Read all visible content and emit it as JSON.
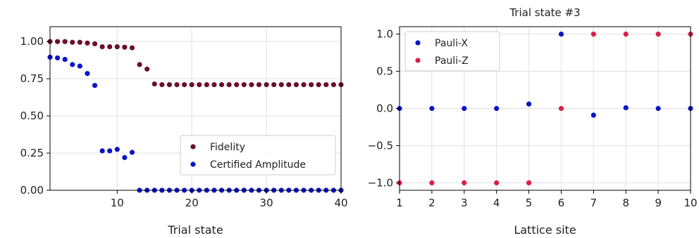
{
  "chart_data": [
    {
      "type": "scatter",
      "title": "",
      "xlabel": "Trial state",
      "ylabel": "",
      "xlim": [
        1,
        40
      ],
      "ylim": [
        0,
        1.1
      ],
      "x_ticks": [
        10,
        20,
        30,
        40
      ],
      "y_ticks": [
        0.0,
        0.25,
        0.5,
        0.75,
        1.0
      ],
      "x_tick_labels": [
        "10",
        "20",
        "30",
        "40"
      ],
      "y_tick_labels": [
        "0.00",
        "0.25",
        "0.50",
        "0.75",
        "1.00"
      ],
      "grid": true,
      "legend_position": "lower-right",
      "series": [
        {
          "name": "Fidelity",
          "color": "#6b0f2a",
          "points": [
            [
              1,
              1.0
            ],
            [
              2,
              1.0
            ],
            [
              3,
              1.0
            ],
            [
              4,
              0.995
            ],
            [
              5,
              0.995
            ],
            [
              6,
              0.99
            ],
            [
              7,
              0.985
            ],
            [
              8,
              0.965
            ],
            [
              9,
              0.965
            ],
            [
              10,
              0.965
            ],
            [
              11,
              0.962
            ],
            [
              12,
              0.958
            ],
            [
              13,
              0.845
            ],
            [
              14,
              0.815
            ],
            [
              15,
              0.715
            ],
            [
              16,
              0.71
            ],
            [
              17,
              0.71
            ],
            [
              18,
              0.71
            ],
            [
              19,
              0.71
            ],
            [
              20,
              0.71
            ],
            [
              21,
              0.71
            ],
            [
              22,
              0.71
            ],
            [
              23,
              0.71
            ],
            [
              24,
              0.71
            ],
            [
              25,
              0.71
            ],
            [
              26,
              0.71
            ],
            [
              27,
              0.71
            ],
            [
              28,
              0.71
            ],
            [
              29,
              0.71
            ],
            [
              30,
              0.71
            ],
            [
              31,
              0.71
            ],
            [
              32,
              0.71
            ],
            [
              33,
              0.71
            ],
            [
              34,
              0.71
            ],
            [
              35,
              0.71
            ],
            [
              36,
              0.71
            ],
            [
              37,
              0.71
            ],
            [
              38,
              0.71
            ],
            [
              39,
              0.71
            ],
            [
              40,
              0.71
            ]
          ]
        },
        {
          "name": "Certified Amplitude",
          "color": "#0a14c8",
          "points": [
            [
              1,
              0.895
            ],
            [
              2,
              0.89
            ],
            [
              3,
              0.88
            ],
            [
              4,
              0.845
            ],
            [
              5,
              0.835
            ],
            [
              6,
              0.785
            ],
            [
              7,
              0.705
            ],
            [
              8,
              0.265
            ],
            [
              9,
              0.265
            ],
            [
              10,
              0.275
            ],
            [
              11,
              0.22
            ],
            [
              12,
              0.255
            ],
            [
              13,
              0.0
            ],
            [
              14,
              0.0
            ],
            [
              15,
              0.0
            ],
            [
              16,
              0.0
            ],
            [
              17,
              0.0
            ],
            [
              18,
              0.0
            ],
            [
              19,
              0.0
            ],
            [
              20,
              0.0
            ],
            [
              21,
              0.0
            ],
            [
              22,
              0.0
            ],
            [
              23,
              0.0
            ],
            [
              24,
              0.0
            ],
            [
              25,
              0.0
            ],
            [
              26,
              0.0
            ],
            [
              27,
              0.0
            ],
            [
              28,
              0.0
            ],
            [
              29,
              0.0
            ],
            [
              30,
              0.0
            ],
            [
              31,
              0.0
            ],
            [
              32,
              0.0
            ],
            [
              33,
              0.0
            ],
            [
              34,
              0.0
            ],
            [
              35,
              0.0
            ],
            [
              36,
              0.0
            ],
            [
              37,
              0.0
            ],
            [
              38,
              0.0
            ],
            [
              39,
              0.0
            ],
            [
              40,
              0.0
            ]
          ]
        }
      ]
    },
    {
      "type": "scatter",
      "title": "Trial state #3",
      "xlabel": "Lattice site",
      "ylabel": "",
      "xlim": [
        1,
        10
      ],
      "ylim": [
        -1.1,
        1.1
      ],
      "x_ticks": [
        1,
        2,
        3,
        4,
        5,
        6,
        7,
        8,
        9,
        10
      ],
      "y_ticks": [
        -1.0,
        -0.5,
        0.0,
        0.5,
        1.0
      ],
      "x_tick_labels": [
        "1",
        "2",
        "3",
        "4",
        "5",
        "6",
        "7",
        "8",
        "9",
        "10"
      ],
      "y_tick_labels": [
        "−1.0",
        "−0.5",
        "0.0",
        "0.5",
        "1.0"
      ],
      "grid": true,
      "legend_position": "upper-left",
      "series": [
        {
          "name": "Pauli-X",
          "color": "#0a14c8",
          "points": [
            [
              1,
              0.0
            ],
            [
              2,
              0.0
            ],
            [
              3,
              0.0
            ],
            [
              4,
              0.0
            ],
            [
              5,
              0.06
            ],
            [
              6,
              1.0
            ],
            [
              7,
              -0.09
            ],
            [
              8,
              0.01
            ],
            [
              9,
              0.0
            ],
            [
              10,
              0.0
            ]
          ]
        },
        {
          "name": "Pauli-Z",
          "color": "#dc1e46",
          "points": [
            [
              1,
              -1.0
            ],
            [
              2,
              -1.0
            ],
            [
              3,
              -1.0
            ],
            [
              4,
              -1.0
            ],
            [
              5,
              -1.0
            ],
            [
              6,
              0.0
            ],
            [
              7,
              1.0
            ],
            [
              8,
              1.0
            ],
            [
              9,
              1.0
            ],
            [
              10,
              1.0
            ]
          ]
        }
      ]
    }
  ]
}
